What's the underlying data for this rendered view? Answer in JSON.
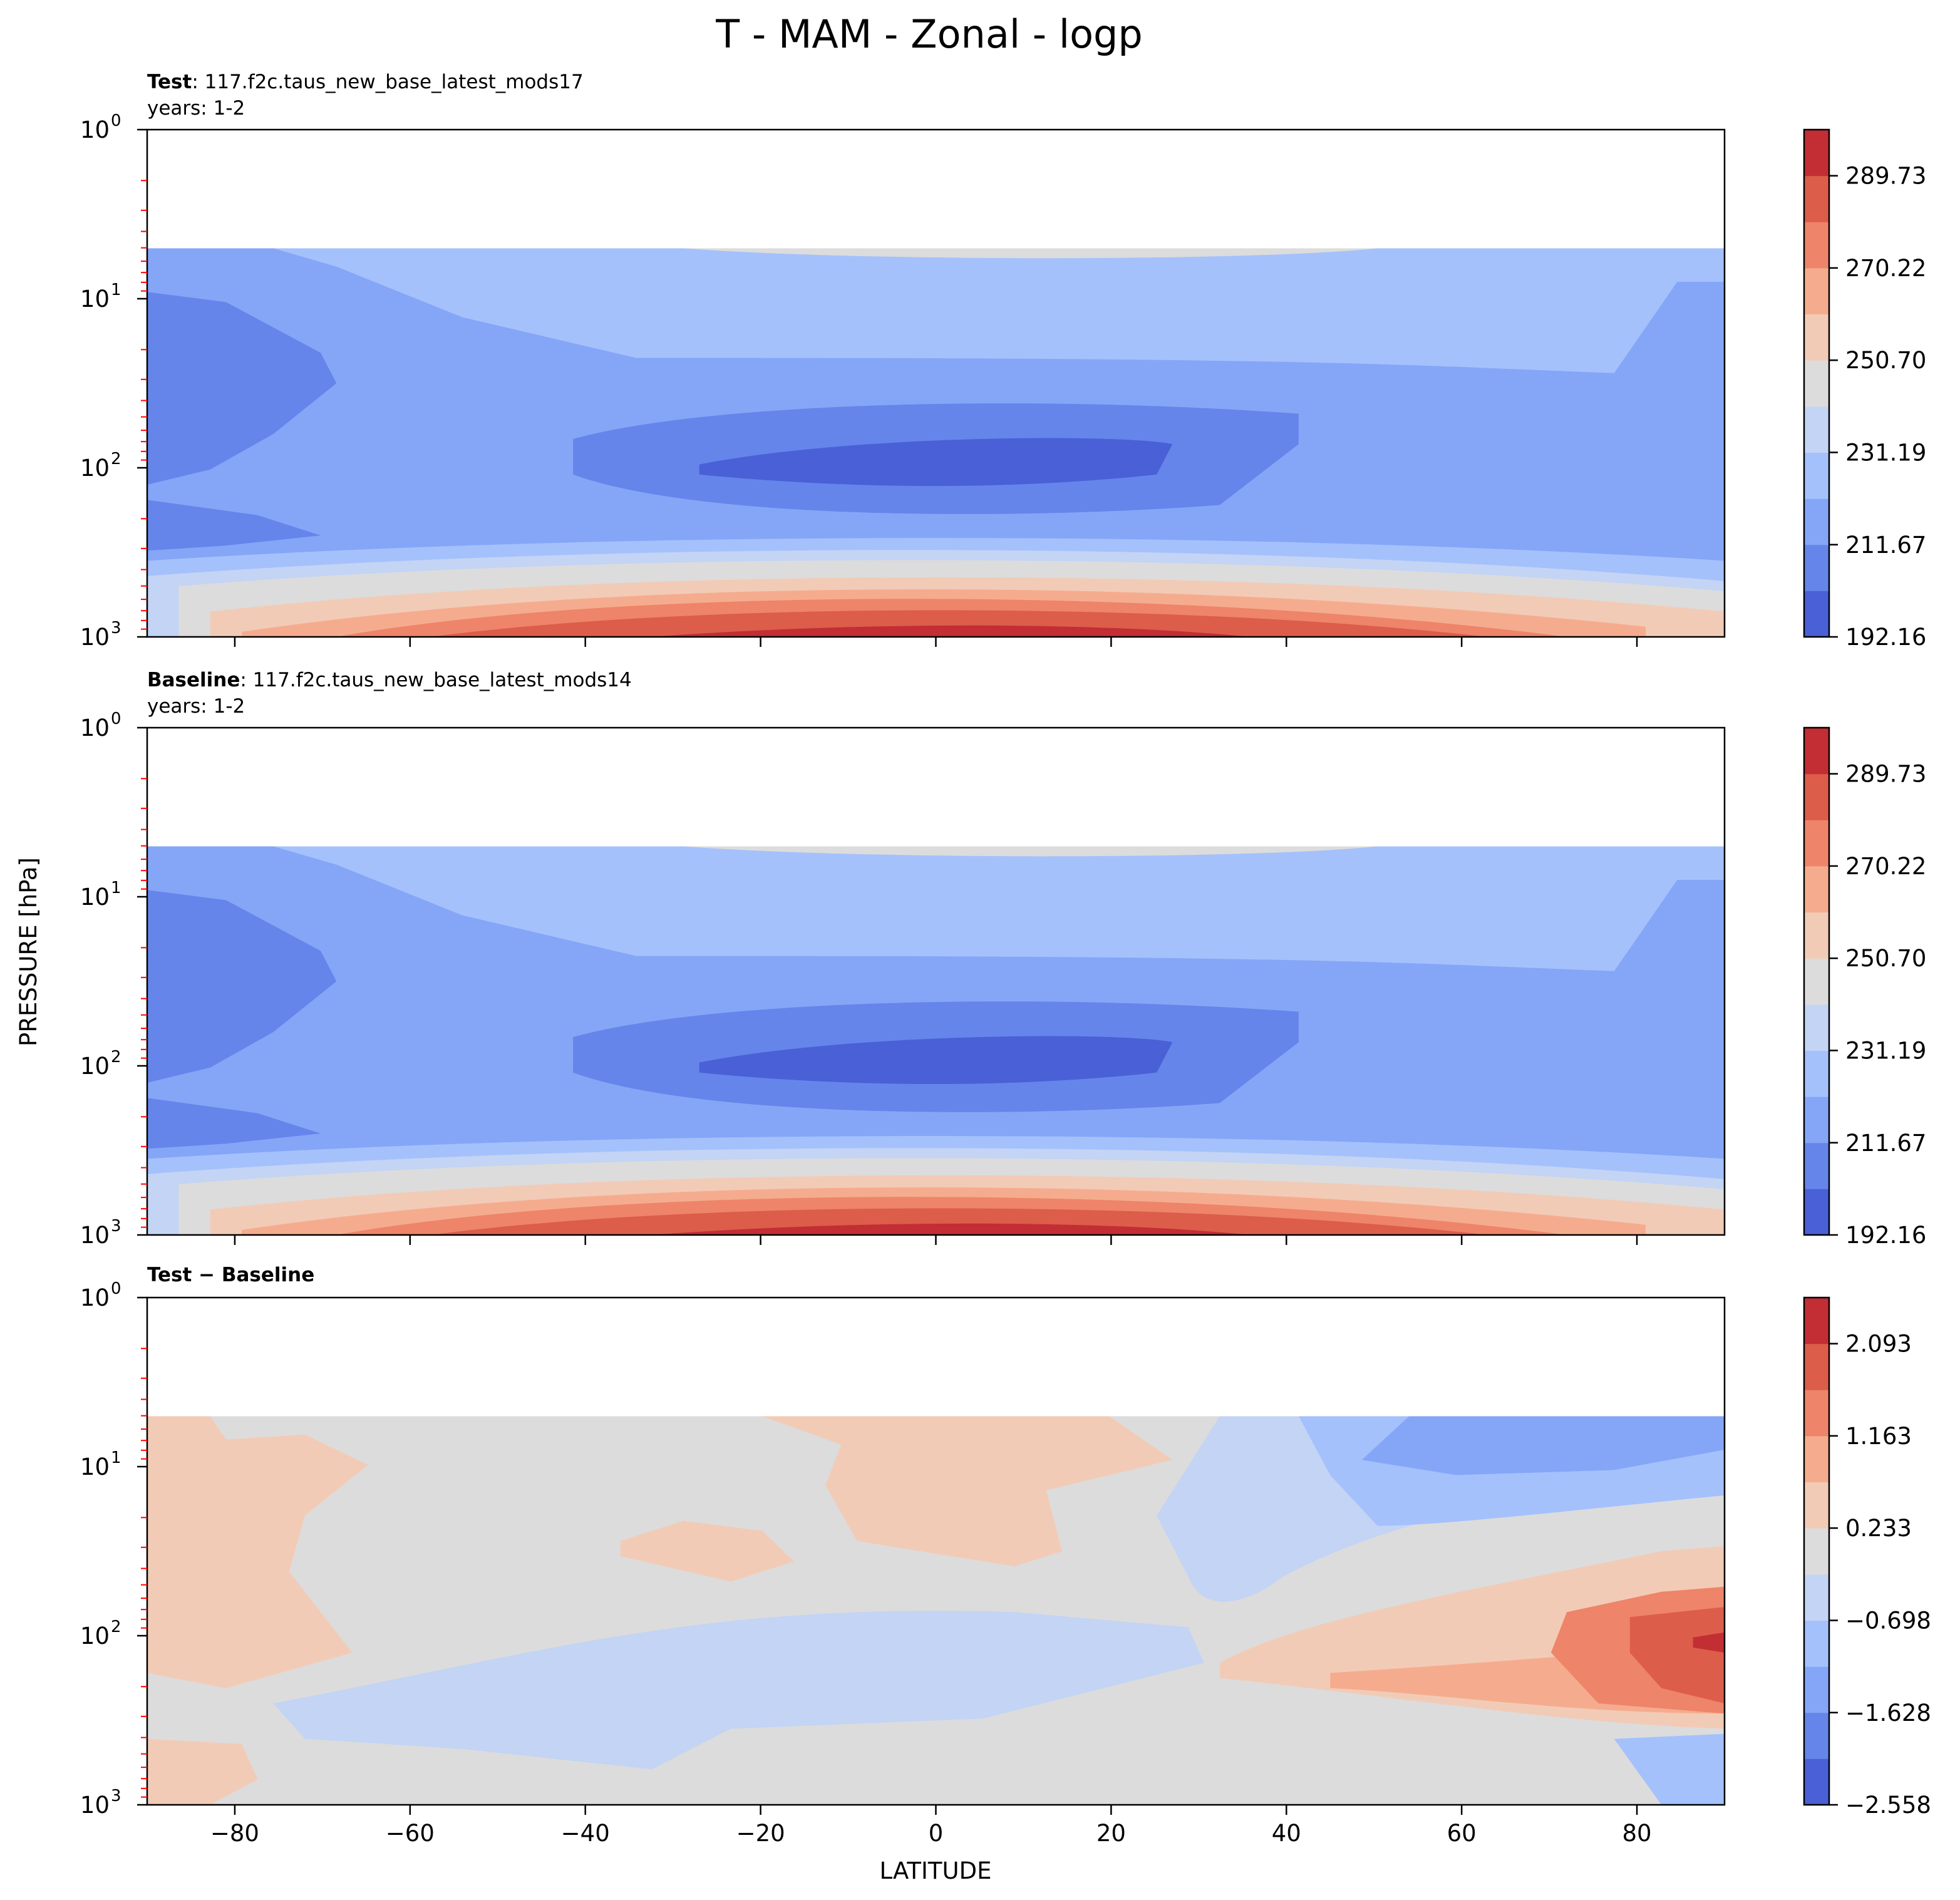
{
  "figure": {
    "title": "T - MAM - Zonal - logp",
    "xlabel": "LATITUDE",
    "ylabel": "PRESSURE [hPa]"
  },
  "colors": {
    "dark_blue": "#4a60d6",
    "blue": "#6585ea",
    "mid_blue": "#85a6f7",
    "light_blue": "#a4c1fc",
    "pale_blue": "#c3d4f5",
    "grey": "#dcdcdc",
    "pale_red": "#f2cbb7",
    "light_red": "#f5ac8e",
    "mid_red": "#ee8469",
    "red": "#dc5d4a",
    "dark_red": "#c22e34",
    "min_tick": "#ff0000"
  },
  "chart_data": [
    {
      "type": "contour",
      "panel": "test",
      "label_bold": "Test",
      "label_rest": ": 117.f2c.taus_new_base_latest_mods17",
      "years": "years: 1-2",
      "x_ticks": [
        -80,
        -60,
        -40,
        -20,
        0,
        20,
        40,
        60,
        80
      ],
      "x_range": [
        -90,
        90
      ],
      "y_range_hPa": [
        1000,
        1
      ],
      "y_scale": "log",
      "y_tick_labels": [
        "10",
        "10",
        "10",
        "10"
      ],
      "y_tick_exponents": [
        "0",
        "1",
        "2",
        "3"
      ],
      "colorbar_levels": [
        192.16,
        201.92,
        211.67,
        221.43,
        231.19,
        240.94,
        250.7,
        260.46,
        270.22,
        279.97,
        289.73,
        299.49
      ],
      "colorbar_tick_labels": [
        "192.16",
        "211.67",
        "231.19",
        "250.70",
        "270.22",
        "289.73"
      ],
      "min_labelled_value": 192.16,
      "max_labelled_value": 289.73,
      "description_ranges": {
        "max_region": "equator near 1000 hPa",
        "min_region": "equator near 100 hPa"
      }
    },
    {
      "type": "contour",
      "panel": "baseline",
      "label_bold": "Baseline",
      "label_rest": ": 117.f2c.taus_new_base_latest_mods14",
      "years": "years: 1-2",
      "x_ticks": [
        -80,
        -60,
        -40,
        -20,
        0,
        20,
        40,
        60,
        80
      ],
      "x_range": [
        -90,
        90
      ],
      "y_range_hPa": [
        1000,
        1
      ],
      "y_scale": "log",
      "y_tick_labels": [
        "10",
        "10",
        "10",
        "10"
      ],
      "y_tick_exponents": [
        "0",
        "1",
        "2",
        "3"
      ],
      "colorbar_levels": [
        192.16,
        201.92,
        211.67,
        221.43,
        231.19,
        240.94,
        250.7,
        260.46,
        270.22,
        279.97,
        289.73,
        299.49
      ],
      "colorbar_tick_labels": [
        "192.16",
        "211.67",
        "231.19",
        "250.70",
        "270.22",
        "289.73"
      ],
      "min_labelled_value": 192.16,
      "max_labelled_value": 289.73
    },
    {
      "type": "contour",
      "panel": "diff",
      "label_bold": "Test − Baseline",
      "x_ticks": [
        -80,
        -60,
        -40,
        -20,
        0,
        20,
        40,
        60,
        80
      ],
      "x_tick_labels": [
        "−80",
        "−60",
        "−40",
        "−20",
        "0",
        "20",
        "40",
        "60",
        "80"
      ],
      "x_range": [
        -90,
        90
      ],
      "y_range_hPa": [
        1000,
        1
      ],
      "y_scale": "log",
      "y_tick_labels": [
        "10",
        "10",
        "10",
        "10"
      ],
      "y_tick_exponents": [
        "0",
        "1",
        "2",
        "3"
      ],
      "colorbar_levels": [
        -2.558,
        -2.093,
        -1.628,
        -1.163,
        -0.698,
        -0.233,
        0.233,
        0.698,
        1.163,
        1.628,
        2.093,
        2.558
      ],
      "colorbar_tick_labels": [
        "−2.558",
        "−1.628",
        "−0.698",
        "0.233",
        "1.163",
        "2.093"
      ]
    }
  ]
}
